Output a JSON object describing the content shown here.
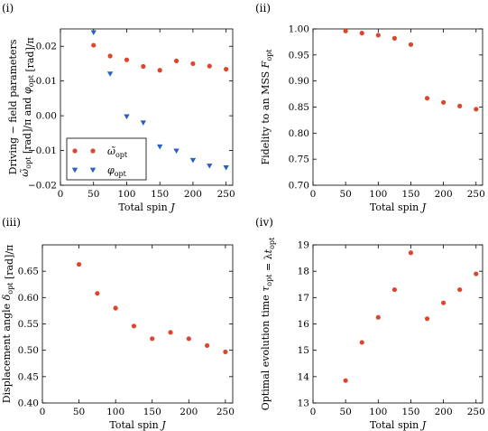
{
  "panels": [
    {
      "label": "(i)"
    },
    {
      "label": "(ii)"
    },
    {
      "label": "(iii)"
    },
    {
      "label": "(iv)"
    }
  ],
  "chart_data": [
    {
      "type": "scatter",
      "xlabel": "Total spin J",
      "ylabel": "Driving − field parameters ω̃opt [rad]/π and φopt [rad]/π",
      "xlim": [
        0,
        260
      ],
      "ylim": [
        -0.02,
        0.025
      ],
      "xticks": [
        "0",
        "50",
        "100",
        "150",
        "200",
        "250"
      ],
      "yticks": [
        "−0.02",
        "−0.01",
        "0.00",
        "0.01",
        "0.02"
      ],
      "legend_position": "lower-left",
      "series": [
        {
          "name": "ω̃opt",
          "marker": "circle",
          "color": "#e0452b",
          "x": [
            50,
            75,
            100,
            125,
            150,
            175,
            200,
            225,
            250
          ],
          "y": [
            0.0203,
            0.0172,
            0.0161,
            0.0142,
            0.0131,
            0.0158,
            0.015,
            0.0143,
            0.0134
          ]
        },
        {
          "name": "φopt",
          "marker": "triangle-down",
          "color": "#2c5fc1",
          "x": [
            50,
            75,
            100,
            125,
            150,
            175,
            200,
            225,
            250
          ],
          "y": [
            0.024,
            0.0121,
            -0.0002,
            -0.002,
            -0.0089,
            -0.0101,
            -0.0128,
            -0.0144,
            -0.0149
          ]
        }
      ]
    },
    {
      "type": "scatter",
      "xlabel": "Total spin J",
      "ylabel": "Fidelity to an MSS Fopt",
      "xlim": [
        0,
        260
      ],
      "ylim": [
        0.7,
        1.0
      ],
      "xticks": [
        "0",
        "50",
        "100",
        "150",
        "200",
        "250"
      ],
      "yticks": [
        "0.70",
        "0.75",
        "0.80",
        "0.85",
        "0.90",
        "0.95",
        "1.00"
      ],
      "series": [
        {
          "marker": "circle",
          "color": "#e0452b",
          "x": [
            50,
            75,
            100,
            125,
            150,
            175,
            200,
            225,
            250
          ],
          "y": [
            0.996,
            0.992,
            0.988,
            0.982,
            0.97,
            0.867,
            0.859,
            0.852,
            0.846
          ]
        }
      ]
    },
    {
      "type": "scatter",
      "xlabel": "Total spin J",
      "ylabel": "Displacement angle δopt [rad]/π",
      "xlim": [
        0,
        260
      ],
      "ylim": [
        0.4,
        0.7
      ],
      "xticks": [
        "0",
        "50",
        "100",
        "150",
        "200",
        "250"
      ],
      "yticks": [
        "0.40",
        "0.45",
        "0.50",
        "0.55",
        "0.60",
        "0.65"
      ],
      "series": [
        {
          "marker": "circle",
          "color": "#e0452b",
          "x": [
            50,
            75,
            100,
            125,
            150,
            175,
            200,
            225,
            250
          ],
          "y": [
            0.663,
            0.608,
            0.58,
            0.546,
            0.522,
            0.534,
            0.522,
            0.509,
            0.497
          ]
        }
      ]
    },
    {
      "type": "scatter",
      "xlabel": "Total spin J",
      "ylabel": "Optimal evolution time τopt = λtopt",
      "xlim": [
        0,
        260
      ],
      "ylim": [
        13,
        19
      ],
      "xticks": [
        "0",
        "50",
        "100",
        "150",
        "200",
        "250"
      ],
      "yticks": [
        "13",
        "14",
        "15",
        "16",
        "17",
        "18",
        "19"
      ],
      "series": [
        {
          "marker": "circle",
          "color": "#e0452b",
          "x": [
            50,
            75,
            100,
            125,
            150,
            175,
            200,
            225,
            250
          ],
          "y": [
            13.85,
            15.3,
            16.25,
            17.3,
            18.7,
            16.2,
            16.8,
            17.3,
            17.9
          ]
        }
      ]
    }
  ]
}
